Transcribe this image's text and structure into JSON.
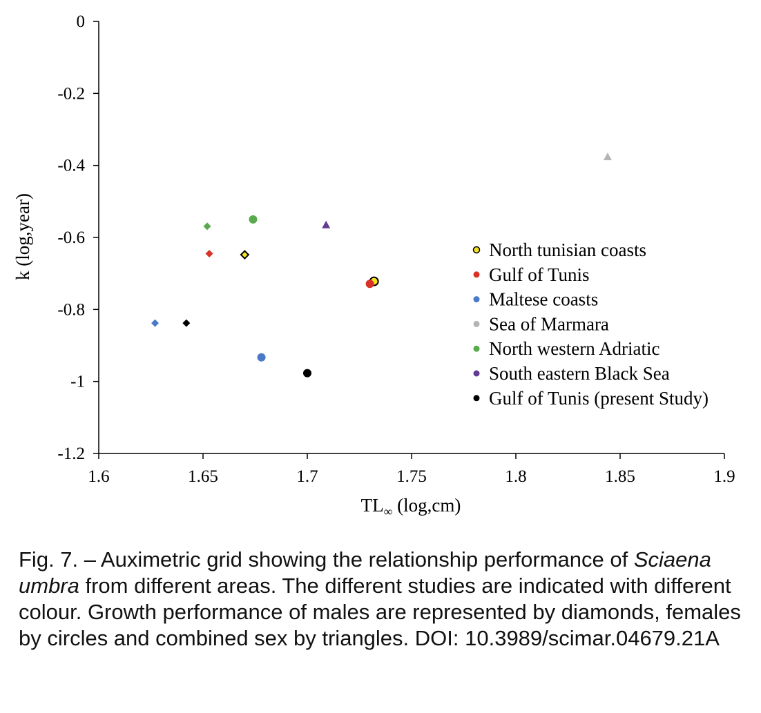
{
  "chart_data": {
    "type": "scatter",
    "xlabel_main": "TL",
    "xlabel_sub": "∞",
    "xlabel_rest": " (log,cm)",
    "ylabel": "k (log,year)",
    "xlim": [
      1.6,
      1.9
    ],
    "ylim": [
      -1.2,
      0
    ],
    "xticks": [
      1.6,
      1.65,
      1.7,
      1.75,
      1.8,
      1.85,
      1.9
    ],
    "xtick_labels": [
      "1.6",
      "1.65",
      "1.7",
      "1.75",
      "1.8",
      "1.85",
      "1.9"
    ],
    "yticks": [
      0,
      -0.2,
      -0.4,
      -0.6,
      -0.8,
      -1,
      -1.2
    ],
    "ytick_labels": [
      "0",
      "-0.2",
      "-0.4",
      "-0.6",
      "-0.8",
      "-1",
      "-1.2"
    ],
    "grid": false,
    "legend_position": "right",
    "series": [
      {
        "name": "North tunisian coasts",
        "color": "#f5e11e",
        "outline": "#000000",
        "points": [
          {
            "x": 1.67,
            "y": -0.648,
            "marker": "diamond"
          },
          {
            "x": 1.732,
            "y": -0.722,
            "marker": "circle"
          }
        ]
      },
      {
        "name": "Gulf of Tunis",
        "color": "#d93229",
        "points": [
          {
            "x": 1.653,
            "y": -0.645,
            "marker": "diamond"
          },
          {
            "x": 1.73,
            "y": -0.729,
            "marker": "circle"
          }
        ]
      },
      {
        "name": "Maltese coasts",
        "color": "#4a79c8",
        "points": [
          {
            "x": 1.627,
            "y": -0.838,
            "marker": "diamond"
          },
          {
            "x": 1.678,
            "y": -0.933,
            "marker": "circle"
          }
        ]
      },
      {
        "name": "Sea of Marmara",
        "color": "#b4b4b4",
        "points": [
          {
            "x": 1.844,
            "y": -0.376,
            "marker": "triangle"
          }
        ]
      },
      {
        "name": "North western Adriatic",
        "color": "#58aa4c",
        "points": [
          {
            "x": 1.652,
            "y": -0.569,
            "marker": "diamond"
          },
          {
            "x": 1.674,
            "y": -0.55,
            "marker": "circle"
          }
        ]
      },
      {
        "name": "South eastern Black Sea",
        "color": "#603c92",
        "points": [
          {
            "x": 1.709,
            "y": -0.565,
            "marker": "triangle"
          }
        ]
      },
      {
        "name": "Gulf of Tunis (present Study)",
        "color": "#000000",
        "points": [
          {
            "x": 1.642,
            "y": -0.838,
            "marker": "diamond"
          },
          {
            "x": 1.7,
            "y": -0.977,
            "marker": "circle"
          }
        ]
      }
    ]
  },
  "caption": {
    "prefix": "Fig. 7. – Auximetric grid showing the relationship performance of ",
    "species": "Sciaena umbra",
    "suffix": " from different areas. The different studies are indicated with different colour. Growth performance of males are represented by diamonds, females by circles and combined sex by triangles. DOI: 10.3989/scimar.04679.21A"
  }
}
